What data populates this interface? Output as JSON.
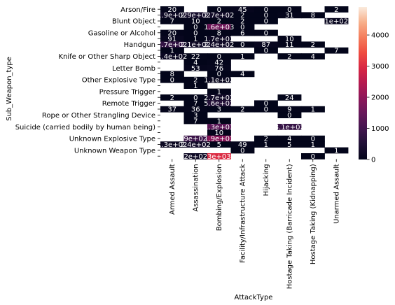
{
  "chart_data": {
    "type": "heatmap",
    "xlabel": "AttackType",
    "ylabel": "Sub_Weapon_type",
    "columns": [
      "Armed Assault",
      "Assassination",
      "Bombing/Explosion",
      "Facility/Infrastructure Attack",
      "Hijacking",
      "Hostage Taking (Barricade Incident)",
      "Hostage Taking (Kidnapping)",
      "Unarmed Assault"
    ],
    "rows": [
      "Arson/Fire",
      "",
      "Blunt Object",
      "",
      "Gasoline or Alcohol",
      "",
      "Handgun",
      "",
      "Knife or Other Sharp Object",
      "",
      "Letter Bomb",
      "",
      "Other Explosive Type",
      "",
      "Pressure Trigger",
      "",
      "Remote Trigger",
      "",
      "Rope or Other Strangling Device",
      "",
      "Suicide (carried bodily by human being)",
      "",
      "Unknown Explosive Type",
      "",
      "Unknown Weapon Type",
      ""
    ],
    "cells": [
      [
        20,
        null,
        0,
        45,
        0,
        0,
        null,
        2
      ],
      [
        190,
        290,
        270,
        2,
        0,
        31,
        8,
        null
      ],
      [
        7,
        10,
        2,
        2,
        0,
        null,
        null,
        100
      ],
      [
        null,
        0,
        1600,
        0,
        null,
        null,
        null,
        null
      ],
      [
        20,
        0,
        8,
        6,
        0,
        null,
        null,
        null
      ],
      [
        91,
        1,
        170,
        null,
        null,
        10,
        null,
        null
      ],
      [
        770,
        210,
        240,
        0,
        87,
        11,
        2,
        null
      ],
      [
        1,
        null,
        null,
        null,
        0,
        null,
        null,
        7
      ],
      [
        140,
        22,
        0,
        1,
        null,
        2,
        4,
        null
      ],
      [
        null,
        4,
        42,
        null,
        null,
        null,
        null,
        null
      ],
      [
        null,
        53,
        76,
        null,
        null,
        null,
        null,
        null
      ],
      [
        8,
        null,
        0,
        4,
        null,
        null,
        null,
        null
      ],
      [
        0,
        2,
        110,
        null,
        null,
        null,
        null,
        null
      ],
      [
        null,
        1,
        null,
        null,
        null,
        null,
        null,
        null
      ],
      [
        null,
        null,
        1,
        null,
        null,
        null,
        null,
        null
      ],
      [
        2,
        0,
        270,
        null,
        null,
        24,
        null,
        null
      ],
      [
        null,
        7,
        560,
        null,
        0,
        null,
        null,
        null
      ],
      [
        37,
        36,
        3,
        2,
        0,
        9,
        1,
        null
      ],
      [
        null,
        3,
        null,
        null,
        null,
        0,
        null,
        null
      ],
      [
        null,
        7,
        1,
        null,
        null,
        null,
        null,
        null
      ],
      [
        null,
        null,
        1300,
        null,
        null,
        810,
        null,
        null
      ],
      [
        null,
        null,
        10,
        null,
        null,
        null,
        null,
        null
      ],
      [
        null,
        900,
        1900,
        null,
        2,
        4,
        0,
        null
      ],
      [
        130,
        240,
        5,
        49,
        1,
        5,
        1,
        null
      ],
      [
        null,
        null,
        null,
        0,
        null,
        null,
        null,
        1
      ],
      [
        null,
        200,
        3000,
        null,
        null,
        null,
        0,
        null
      ]
    ],
    "cell_labels": [
      [
        "20",
        "",
        "0",
        "45",
        "0",
        "0",
        "",
        "2"
      ],
      [
        "1.9e+02",
        "2.9e+02",
        "2.7e+02",
        "2",
        "0",
        "31",
        "8",
        ""
      ],
      [
        "7",
        "10",
        "2",
        "2",
        "0",
        "",
        "",
        "1e+02"
      ],
      [
        "",
        "0",
        "1.6e+03",
        "0",
        "",
        "",
        "",
        ""
      ],
      [
        "20",
        "0",
        "8",
        "6",
        "0",
        "",
        "",
        ""
      ],
      [
        "91",
        "1",
        "1.7e+02",
        "",
        "",
        "10",
        "",
        ""
      ],
      [
        "7.7e+02",
        "2.1e+02",
        "2.4e+02",
        "0",
        "87",
        "11",
        "2",
        ""
      ],
      [
        "1",
        "",
        "",
        "",
        "0",
        "",
        "",
        "7"
      ],
      [
        "1.4e+02",
        "22",
        "0",
        "1",
        "",
        "2",
        "4",
        ""
      ],
      [
        "",
        "4",
        "42",
        "",
        "",
        "",
        "",
        ""
      ],
      [
        "",
        "53",
        "76",
        "",
        "",
        "",
        "",
        ""
      ],
      [
        "8",
        "",
        "0",
        "4",
        "",
        "",
        "",
        ""
      ],
      [
        "0",
        "2",
        "1.1e+02",
        "",
        "",
        "",
        "",
        ""
      ],
      [
        "",
        "1",
        "",
        "",
        "",
        "",
        "",
        ""
      ],
      [
        "",
        "",
        "1",
        "",
        "",
        "",
        "",
        ""
      ],
      [
        "2",
        "0",
        "2.7e+02",
        "",
        "",
        "24",
        "",
        ""
      ],
      [
        "",
        "7",
        "5.6e+02",
        "",
        "0",
        "",
        "",
        ""
      ],
      [
        "37",
        "36",
        "3",
        "2",
        "0",
        "9",
        "1",
        ""
      ],
      [
        "",
        "3",
        "",
        "",
        "",
        "0",
        "",
        ""
      ],
      [
        "",
        "7",
        "1",
        "",
        "",
        "",
        "",
        ""
      ],
      [
        "",
        "",
        "1.3e+03",
        "",
        "",
        "8.1e+02",
        "",
        ""
      ],
      [
        "",
        "",
        "10",
        "",
        "",
        "",
        "",
        ""
      ],
      [
        "",
        "9e+02",
        "1.9e+03",
        "",
        "2",
        "4",
        "0",
        ""
      ],
      [
        "1.3e+02",
        "2.4e+02",
        "5",
        "49",
        "1",
        "5",
        "1",
        ""
      ],
      [
        "",
        "",
        "",
        "0",
        "",
        "",
        "",
        "1"
      ],
      [
        "",
        "2e+02",
        "3e+03",
        "",
        "",
        "",
        "0",
        ""
      ]
    ],
    "colorbar": {
      "min": 0,
      "max": 4900,
      "ticks": [
        "0",
        "1000",
        "2000",
        "3000",
        "4000"
      ],
      "tick_values": [
        0,
        1000,
        2000,
        3000,
        4000
      ],
      "colormap": "rocket"
    },
    "grid": false,
    "legend": "colorbar right"
  }
}
